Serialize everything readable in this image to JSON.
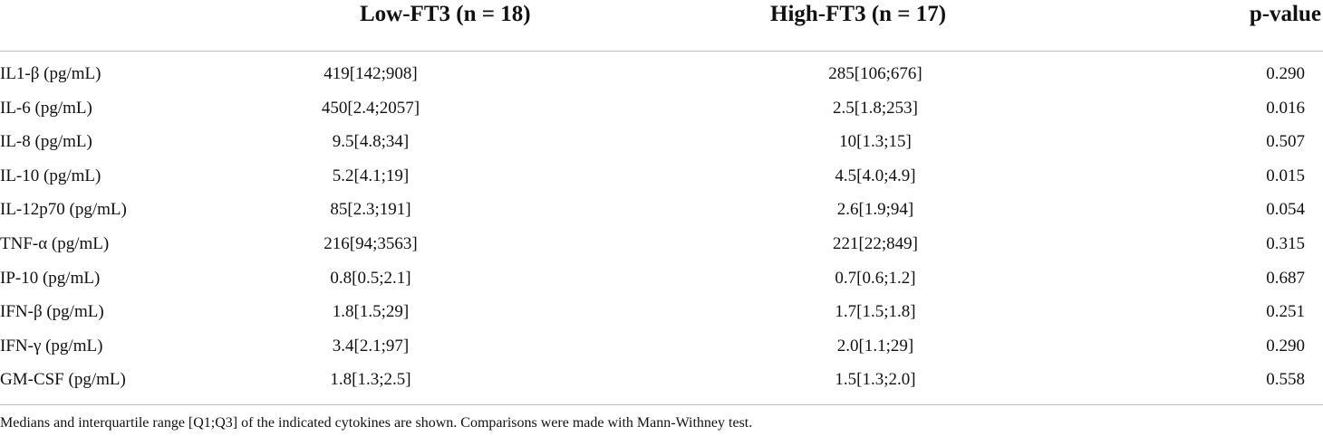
{
  "table": {
    "headers": [
      "",
      "Low-FT3 (n = 18)",
      "High-FT3 (n = 17)",
      "p-value"
    ],
    "rows": [
      {
        "name": "IL1-β (pg/mL)",
        "low": "419[142;908]",
        "high": "285[106;676]",
        "p": "0.290"
      },
      {
        "name": "IL-6 (pg/mL)",
        "low": "450[2.4;2057]",
        "high": "2.5[1.8;253]",
        "p": "0.016"
      },
      {
        "name": "IL-8 (pg/mL)",
        "low": "9.5[4.8;34]",
        "high": "10[1.3;15]",
        "p": "0.507"
      },
      {
        "name": "IL-10 (pg/mL)",
        "low": "5.2[4.1;19]",
        "high": "4.5[4.0;4.9]",
        "p": "0.015"
      },
      {
        "name": "IL-12p70 (pg/mL)",
        "low": "85[2.3;191]",
        "high": "2.6[1.9;94]",
        "p": "0.054"
      },
      {
        "name": "TNF-α (pg/mL)",
        "low": "216[94;3563]",
        "high": "221[22;849]",
        "p": "0.315"
      },
      {
        "name": "IP-10 (pg/mL)",
        "low": "0.8[0.5;2.1]",
        "high": "0.7[0.6;1.2]",
        "p": "0.687"
      },
      {
        "name": "IFN-β (pg/mL)",
        "low": "1.8[1.5;29]",
        "high": "1.7[1.5;1.8]",
        "p": "0.251"
      },
      {
        "name": "IFN-γ (pg/mL)",
        "low": "3.4[2.1;97]",
        "high": "2.0[1.1;29]",
        "p": "0.290"
      },
      {
        "name": "GM-CSF (pg/mL)",
        "low": "1.8[1.3;2.5]",
        "high": "1.5[1.3;2.0]",
        "p": "0.558"
      }
    ]
  },
  "footnote": "Medians and interquartile range [Q1;Q3] of the indicated cytokines are shown. Comparisons were made with Mann-Withney test."
}
